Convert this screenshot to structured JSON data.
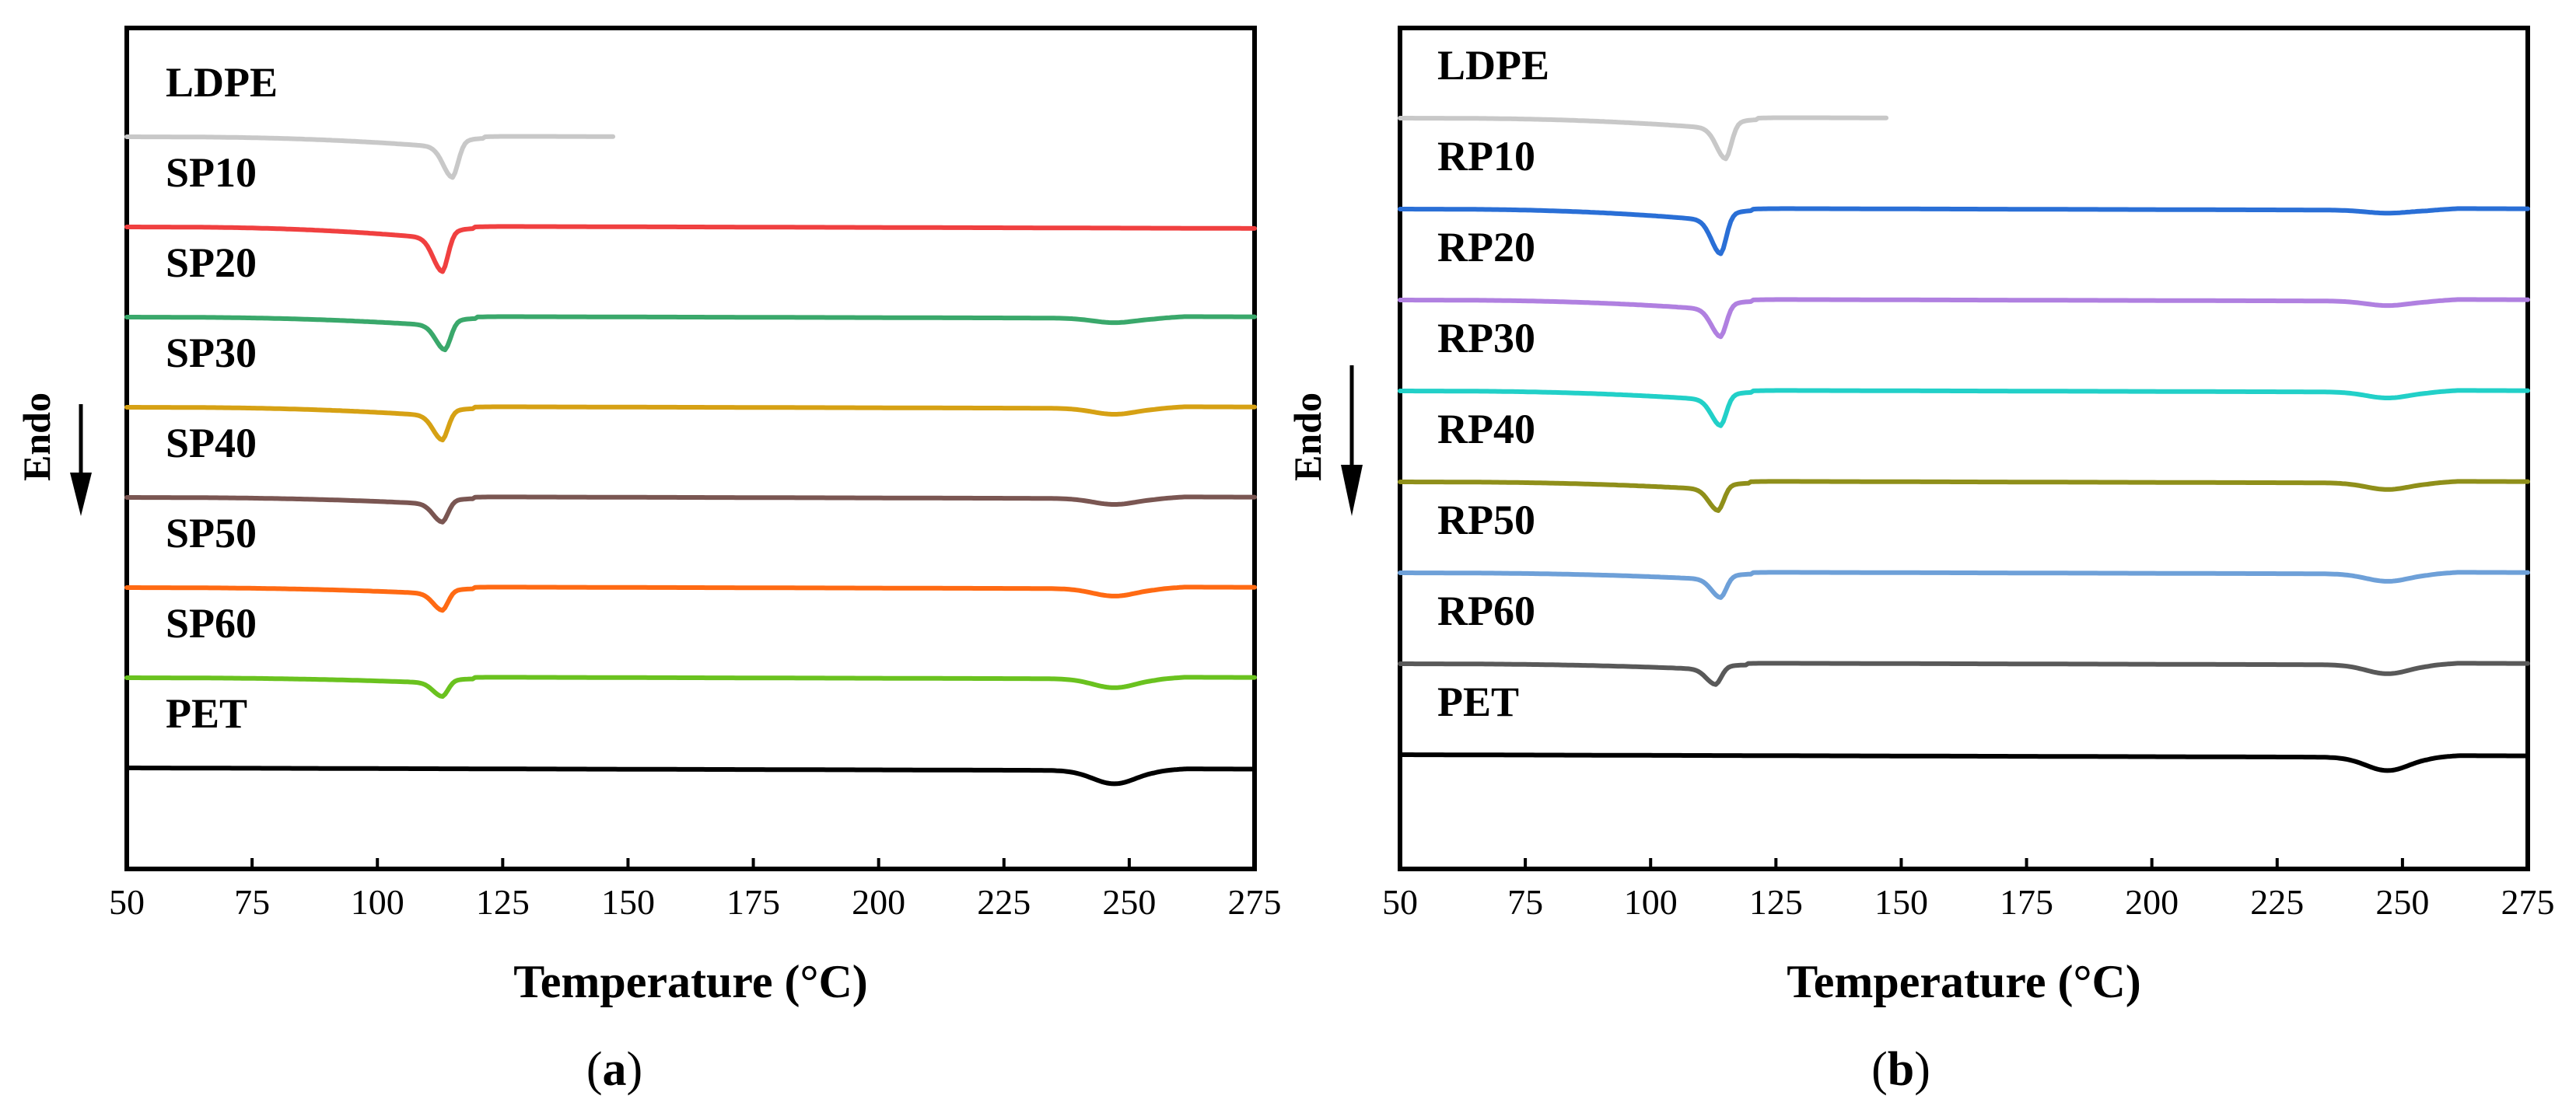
{
  "figure_labels": {
    "endo": "Endo"
  },
  "chart_data": [
    {
      "id": "a",
      "type": "line",
      "panel_label_open": "(",
      "panel_label_letter": "a",
      "panel_label_close": ")",
      "xlabel": "Temperature (°C)",
      "ylabel": "Endo",
      "xlim": [
        50,
        275
      ],
      "xticks": [
        50,
        75,
        100,
        125,
        150,
        175,
        200,
        225,
        250,
        275
      ],
      "y_axis": "offset heat flow (arbitrary units, endothermic down)",
      "series": [
        {
          "name": "LDPE",
          "color": "#c8c8c8",
          "x_max": 147,
          "melt_peak": 115,
          "offset": 0,
          "depth": 1.0,
          "pet_dip": 0
        },
        {
          "name": "SP10",
          "color": "#f04040",
          "x_max": 275,
          "melt_peak": 113,
          "offset": 1,
          "depth": 1.1,
          "pet_dip": 0
        },
        {
          "name": "SP20",
          "color": "#3aa86b",
          "x_max": 275,
          "melt_peak": 113.5,
          "offset": 2,
          "depth": 0.8,
          "pet_dip": 0.15
        },
        {
          "name": "SP30",
          "color": "#d6a114",
          "x_max": 275,
          "melt_peak": 113,
          "offset": 3,
          "depth": 0.8,
          "pet_dip": 0.2
        },
        {
          "name": "SP40",
          "color": "#7a5652",
          "x_max": 275,
          "melt_peak": 113,
          "offset": 4,
          "depth": 0.6,
          "pet_dip": 0.2
        },
        {
          "name": "SP50",
          "color": "#ff6a13",
          "x_max": 275,
          "melt_peak": 113,
          "offset": 5,
          "depth": 0.55,
          "pet_dip": 0.25
        },
        {
          "name": "SP60",
          "color": "#6ac21f",
          "x_max": 275,
          "melt_peak": 113,
          "offset": 6,
          "depth": 0.45,
          "pet_dip": 0.3
        },
        {
          "name": "PET",
          "color": "#000000",
          "x_max": 275,
          "melt_peak": 0,
          "offset": 7,
          "depth": 0,
          "pet_dip": 0.45
        }
      ]
    },
    {
      "id": "b",
      "type": "line",
      "panel_label_open": "(",
      "panel_label_letter": "b",
      "panel_label_close": ")",
      "xlabel": "Temperature (°C)",
      "ylabel": "Endo",
      "xlim": [
        50,
        275
      ],
      "xticks": [
        50,
        75,
        100,
        125,
        150,
        175,
        200,
        225,
        250,
        275
      ],
      "y_axis": "offset heat flow (arbitrary units, endothermic down)",
      "series": [
        {
          "name": "LDPE",
          "color": "#c8c8c8",
          "x_max": 147,
          "melt_peak": 115,
          "offset": 0,
          "depth": 1.0,
          "pet_dip": 0
        },
        {
          "name": "RP10",
          "color": "#2a6fd6",
          "x_max": 275,
          "melt_peak": 114,
          "offset": 1,
          "depth": 1.1,
          "pet_dip": 0.1
        },
        {
          "name": "RP20",
          "color": "#b080e0",
          "x_max": 275,
          "melt_peak": 114,
          "offset": 2,
          "depth": 0.9,
          "pet_dip": 0.15
        },
        {
          "name": "RP30",
          "color": "#22d0c8",
          "x_max": 275,
          "melt_peak": 114,
          "offset": 3,
          "depth": 0.85,
          "pet_dip": 0.2
        },
        {
          "name": "RP40",
          "color": "#8f8f1a",
          "x_max": 275,
          "melt_peak": 113.5,
          "offset": 4,
          "depth": 0.7,
          "pet_dip": 0.22
        },
        {
          "name": "RP50",
          "color": "#6ea0d8",
          "x_max": 275,
          "melt_peak": 114,
          "offset": 5,
          "depth": 0.6,
          "pet_dip": 0.25
        },
        {
          "name": "RP60",
          "color": "#595959",
          "x_max": 275,
          "melt_peak": 113,
          "offset": 6,
          "depth": 0.5,
          "pet_dip": 0.3
        },
        {
          "name": "PET",
          "color": "#000000",
          "x_max": 275,
          "melt_peak": 0,
          "offset": 7,
          "depth": 0,
          "pet_dip": 0.45
        }
      ]
    }
  ]
}
